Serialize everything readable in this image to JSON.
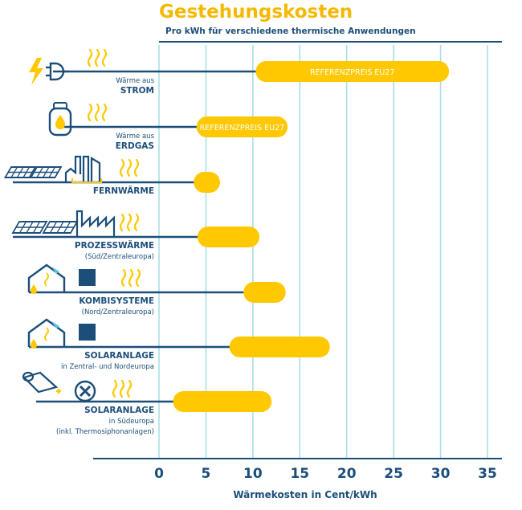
{
  "chart_data": {
    "type": "bar",
    "orientation": "horizontal",
    "title": "Gestehungskosten",
    "subtitle": "Pro kWh für verschiedene thermische Anwendungen",
    "xlabel": "Wärmekosten in Cent/kWh",
    "xlim": [
      -7,
      36
    ],
    "xticks": [
      0,
      5,
      10,
      15,
      20,
      25,
      30,
      35
    ],
    "grid": true,
    "colors": {
      "bar": "#FFC800",
      "bar_text": "#FFFFFF",
      "line": "#1C4E7A",
      "grid": "#A8E0E4",
      "title": "#F5B800",
      "icon_accent": "#5BC4E8"
    },
    "categories": [
      {
        "lines": [
          "Wärme aus",
          "STROM"
        ],
        "bold": [
          false,
          true
        ],
        "icon": "lightning-plug-icon",
        "range": [
          10.3,
          30.9
        ],
        "bar_label": "REFERENZPREIS EU27"
      },
      {
        "lines": [
          "Wärme aus",
          "ERDGAS"
        ],
        "bold": [
          false,
          true
        ],
        "icon": "gas-cylinder-icon",
        "range": [
          4.0,
          13.7
        ],
        "bar_label": "REFERENZPREIS EU27"
      },
      {
        "lines": [
          "FERNWÄRME"
        ],
        "bold": [
          true
        ],
        "icon": "solar-district-heating-icon",
        "range": [
          3.7,
          6.5
        ],
        "bar_label": ""
      },
      {
        "lines": [
          "PROZESSWÄRME",
          "(Süd/Zentraleuropa)"
        ],
        "bold": [
          true,
          false
        ],
        "icon": "solar-factory-icon",
        "range": [
          4.1,
          10.7
        ],
        "bar_label": ""
      },
      {
        "lines": [
          "KOMBISYSTEME",
          "(Nord/Zentraleuropa)"
        ],
        "bold": [
          true,
          false
        ],
        "icon": "house-collector-tank-icon",
        "range": [
          9.0,
          13.5
        ],
        "bar_label": ""
      },
      {
        "lines": [
          "SOLARANLAGE",
          "in Zentral- und Nordeuropa"
        ],
        "bold": [
          true,
          false
        ],
        "icon": "house-collector-tank-icon",
        "range": [
          7.5,
          18.2
        ],
        "bar_label": ""
      },
      {
        "lines": [
          "SOLARANLAGE",
          "in Südeuropa",
          "(inkl. Thermosiphonanlagen)"
        ],
        "bold": [
          true,
          false,
          false
        ],
        "icon": "thermosiphon-fan-icon",
        "range": [
          1.5,
          12.0
        ],
        "bar_label": ""
      }
    ]
  }
}
